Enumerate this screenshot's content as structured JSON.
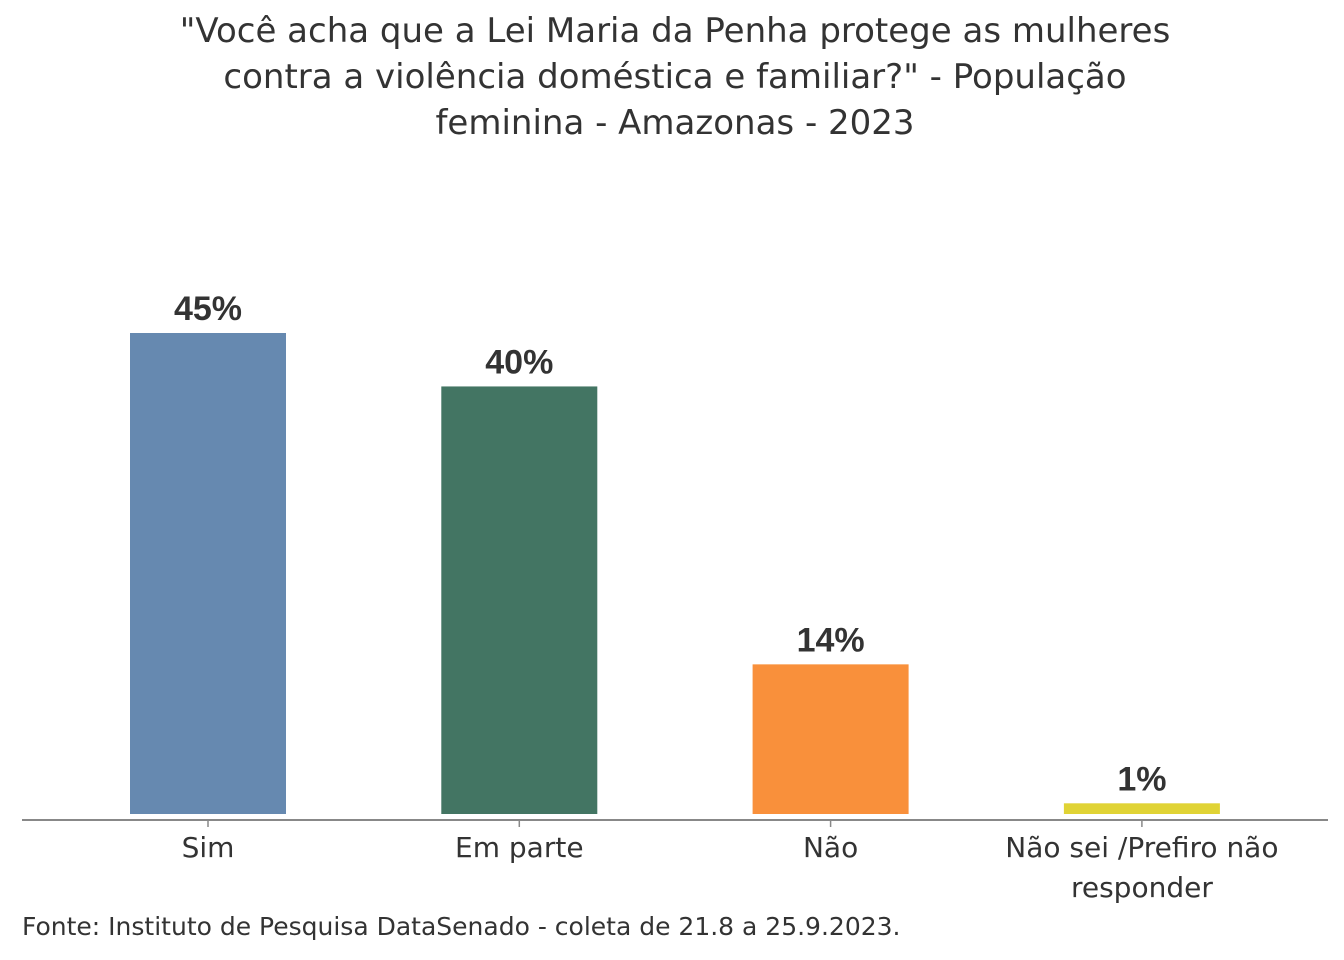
{
  "chart_data": {
    "type": "bar",
    "title_lines": [
      "\"Você acha que a Lei Maria da Penha protege as mulheres",
      "contra a violência doméstica e familiar?\" - População",
      "feminina - Amazonas - 2023"
    ],
    "categories": [
      [
        "Sim"
      ],
      [
        "Em parte"
      ],
      [
        "Não"
      ],
      [
        "Não sei /Prefiro não",
        "responder"
      ]
    ],
    "values": [
      45,
      40,
      14,
      1
    ],
    "labels": [
      "45%",
      "40%",
      "14%",
      "1%"
    ],
    "colors": [
      "#6689b0",
      "#437563",
      "#f9903b",
      "#e0d335"
    ],
    "xlabel": "",
    "ylabel": "",
    "ylim": [
      0,
      45
    ],
    "grid": false,
    "legend": "none"
  },
  "source": "Fonte: Instituto de Pesquisa DataSenado - coleta de 21.8 a 25.9.2023."
}
